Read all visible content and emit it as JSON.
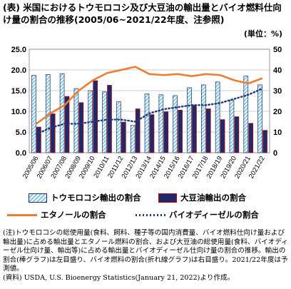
{
  "title": "(表) 米国におけるトウモロコシ及び大豆油の輸出量とバイオ燃料仕向け量の割合の推移(2005/06~2021/22年度、注参照)",
  "unit": "(単位：%)",
  "chart_data": {
    "type": "bar",
    "categories": [
      "2005/06",
      "2006/07",
      "2007/08",
      "2008/09",
      "2009/10",
      "2010/11",
      "2011/12",
      "2012/13",
      "2013/14",
      "2014/15",
      "2015/16",
      "2016/17",
      "2017/18",
      "2018/19",
      "2019/20",
      "2020/21",
      "2021/22"
    ],
    "left_axis": {
      "ylim": [
        0,
        25
      ],
      "ticks": [
        "0.0",
        "5.0",
        "10.0",
        "15.0",
        "20.0",
        "25.0"
      ]
    },
    "right_axis": {
      "ylim": [
        0,
        50
      ],
      "ticks": [
        "0",
        "10",
        "20",
        "30",
        "40",
        "50"
      ]
    },
    "series": [
      {
        "name": "トウモロコシ輸出の割合",
        "type": "bar",
        "axis": "left",
        "color": "#7fc6e6",
        "values": [
          18.7,
          18.9,
          19.1,
          15.5,
          15.0,
          14.7,
          12.3,
          6.6,
          14.2,
          14.0,
          13.8,
          15.7,
          16.4,
          17.1,
          12.7,
          18.5,
          16.4
        ]
      },
      {
        "name": "大豆油輸出の割合",
        "type": "bar",
        "axis": "left",
        "color": "#1f2a6b",
        "values": [
          6.2,
          9.4,
          13.6,
          12.1,
          17.4,
          16.3,
          7.4,
          10.6,
          9.2,
          9.9,
          10.3,
          11.5,
          10.6,
          8.0,
          8.7,
          7.1,
          5.4
        ]
      },
      {
        "name": "エタノールの割合",
        "type": "line",
        "axis": "right",
        "color": "#ed7d31",
        "values": [
          14,
          19,
          23,
          30,
          35,
          38.5,
          40,
          41.5,
          38,
          37.5,
          38,
          37,
          38,
          37.5,
          35,
          33.5,
          36
        ]
      },
      {
        "name": "バイオディーゼルの割合",
        "type": "line",
        "axis": "right",
        "color": "#1f3a7a",
        "values": [
          9,
          12,
          14,
          14,
          15,
          16,
          16,
          15,
          19,
          21,
          22,
          23,
          23,
          24,
          26,
          28,
          31
        ]
      }
    ]
  },
  "notes": [
    "(注)トウモロコシの総使用量(食料、飼料、種子等の国内消費量、バイオ燃料仕向け量および輸出量)に占める輸出量とエタノール燃料の割合、および大豆油の総使用量(食料、バイオディーゼル仕向け量、輸出等)に占める輸出量とバイオディーゼル仕向け量の割合の推移。輸出の割合(棒グラフ)は左目盛り、バイオ燃料の割合(折れ線グラフ)は右目盛り。2021/22年度は予測値。",
    "(資料) USDA, U.S. Bioenergy Statistics(January 21, 2022)より作成。"
  ]
}
